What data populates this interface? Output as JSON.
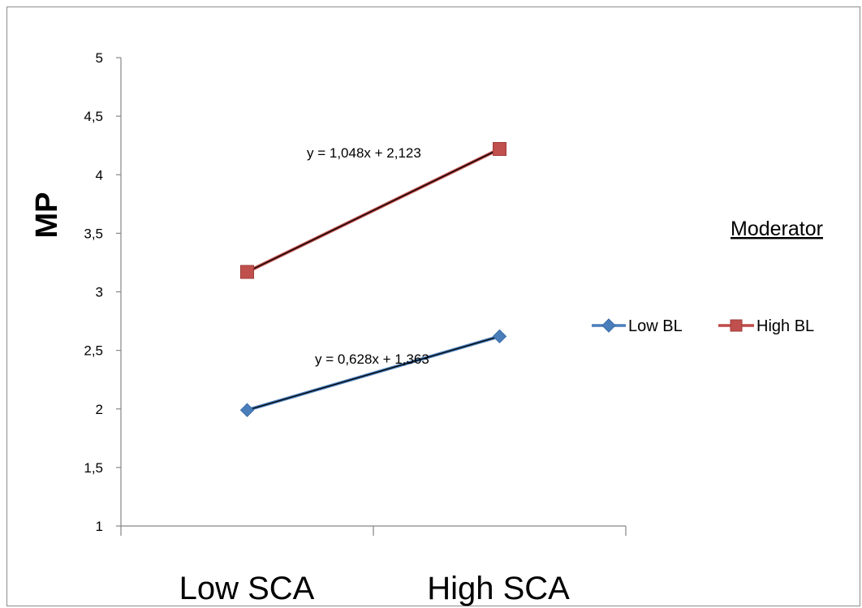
{
  "chart_data": {
    "type": "line",
    "categories": [
      "Low SCA",
      "High SCA"
    ],
    "ylabel": "MP",
    "xlabel": "",
    "ylim": [
      1,
      5
    ],
    "yticks": [
      "1",
      "1,5",
      "2",
      "2,5",
      "3",
      "3,5",
      "4",
      "4,5",
      "5"
    ],
    "ytick_values": [
      1,
      1.5,
      2,
      2.5,
      3,
      3.5,
      4,
      4.5,
      5
    ],
    "grid": false,
    "legend_title": "Moderator",
    "legend_position": "right",
    "series": [
      {
        "name": "Low BL",
        "values": [
          1.99,
          2.62
        ],
        "color": "#4a7ebb",
        "marker": "diamond",
        "trendline": "y = 0,628x + 1,363"
      },
      {
        "name": "High BL",
        "values": [
          3.17,
          4.22
        ],
        "color": "#be4b48",
        "marker": "square",
        "trendline": "y = 1,048x + 2,123"
      }
    ]
  }
}
